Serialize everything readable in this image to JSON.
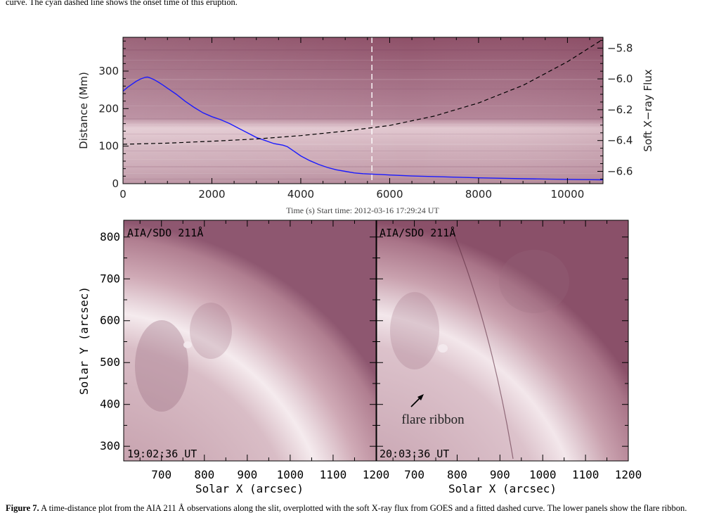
{
  "caption": {
    "top_line": "curve. The cyan dashed line shows the onset time of this eruption.",
    "bottom_label": "Figure 7.",
    "bottom_text": " A time-distance plot from the AIA 211 Å observations along the slit, overplotted with the soft X-ray flux from GOES and a fitted dashed curve. The lower panels show the flare ribbon."
  },
  "chart_data": [
    {
      "type": "line",
      "title": "",
      "xlabel": "Time (s) Start time: 2012-03-16 17:29:24 UT",
      "ylabel": "Distance (Mm)",
      "ylabel_right": "Soft X−ray Flux",
      "xlim": [
        0,
        10800
      ],
      "ylim": [
        0,
        390
      ],
      "ylim_right": [
        -6.68,
        -5.73
      ],
      "x_ticks": [
        "0",
        "2000",
        "4000",
        "6000",
        "8000",
        "10000"
      ],
      "y_ticks": [
        "0",
        "100",
        "200",
        "300"
      ],
      "y_ticks_right": [
        "-6.6",
        "-6.4",
        "-6.2",
        "-6.0",
        "-5.8"
      ],
      "onset_time": 5600,
      "series": [
        {
          "style": "solid",
          "color": "#1a1aff",
          "axis": "right",
          "x": [
            0,
            100,
            200,
            300,
            400,
            500,
            550,
            600,
            700,
            800,
            900,
            1000,
            1200,
            1400,
            1600,
            1800,
            2000,
            2200,
            2400,
            2600,
            2800,
            3000,
            3200,
            3400,
            3600,
            3700,
            3800,
            4000,
            4200,
            4400,
            4600,
            4800,
            5000,
            5200,
            5400,
            5600,
            5800,
            6000,
            6500,
            7000,
            7500,
            8000,
            8500,
            9000,
            9500,
            10000,
            10500,
            10800
          ],
          "y": [
            -6.08,
            -6.055,
            -6.035,
            -6.015,
            -6.0,
            -5.99,
            -5.988,
            -5.992,
            -6.005,
            -6.022,
            -6.04,
            -6.06,
            -6.1,
            -6.145,
            -6.185,
            -6.22,
            -6.245,
            -6.265,
            -6.29,
            -6.32,
            -6.35,
            -6.38,
            -6.4,
            -6.42,
            -6.43,
            -6.44,
            -6.46,
            -6.5,
            -6.53,
            -6.555,
            -6.575,
            -6.59,
            -6.6,
            -6.61,
            -6.615,
            -6.618,
            -6.62,
            -6.624,
            -6.63,
            -6.634,
            -6.638,
            -6.642,
            -6.645,
            -6.648,
            -6.65,
            -6.652,
            -6.654,
            -6.655
          ]
        },
        {
          "style": "dashed",
          "color": "#000000",
          "axis": "left",
          "x": [
            0,
            1000,
            2000,
            3000,
            4000,
            5000,
            6000,
            7000,
            8000,
            9000,
            10000,
            10800
          ],
          "y": [
            105,
            108,
            113,
            119,
            128,
            140,
            155,
            180,
            215,
            262,
            325,
            385
          ]
        }
      ]
    },
    {
      "type": "other",
      "panel": "left-image",
      "xlabel": "Solar X (arcsec)",
      "ylabel": "Solar Y (arcsec)",
      "xlim": [
        612,
        1200
      ],
      "ylim": [
        265,
        840
      ],
      "x_ticks": [
        "700",
        "800",
        "900",
        "1000",
        "1100",
        "1200"
      ],
      "y_ticks": [
        "300",
        "400",
        "500",
        "600",
        "700",
        "800"
      ],
      "instrument_label": "AIA/SDO 211Å",
      "time_label": "19:02:36 UT"
    },
    {
      "type": "other",
      "panel": "right-image",
      "xlabel": "Solar X (arcsec)",
      "xlim": [
        612,
        1200
      ],
      "ylim": [
        265,
        840
      ],
      "x_ticks": [
        "700",
        "800",
        "900",
        "1000",
        "1100",
        "1200"
      ],
      "instrument_label": "AIA/SDO 211Å",
      "time_label": "20:03:36 UT",
      "annotation": "flare ribbon"
    }
  ]
}
